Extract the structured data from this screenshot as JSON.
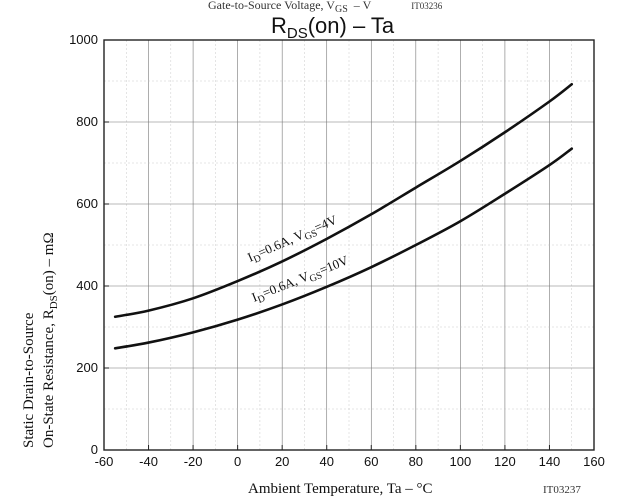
{
  "chart_data": {
    "type": "line",
    "top_caption": "Gate-to-Source Voltage, V",
    "top_caption_sub": "GS",
    "top_caption_tail": "–  V",
    "top_caption_code": "IT03236",
    "title_main": "R",
    "title_sub": "DS",
    "title_tail": "(on)  –  Ta",
    "xlabel": "Ambient Temperature, Ta  –  °C",
    "ylabel_line1": "Static Drain-to-Source",
    "ylabel_line2_main": "On-State Resistance, R",
    "ylabel_line2_sub": "DS",
    "ylabel_line2_tail": "(on)  –  mΩ",
    "figure_code": "IT03237",
    "xlim": [
      -60,
      160
    ],
    "ylim": [
      0,
      1000
    ],
    "x_ticks": [
      -60,
      -40,
      -20,
      0,
      20,
      40,
      60,
      80,
      100,
      120,
      140,
      160
    ],
    "y_ticks": [
      0,
      200,
      400,
      600,
      800,
      1000
    ],
    "grid": true,
    "series": [
      {
        "label_main": "I",
        "label_sub1": "D",
        "label_mid": "=0.6A, V",
        "label_sub2": "GS",
        "label_tail": "=4V",
        "x": [
          -55,
          -40,
          -20,
          0,
          20,
          40,
          60,
          80,
          100,
          120,
          140,
          150
        ],
        "y": [
          325,
          340,
          370,
          412,
          460,
          515,
          575,
          640,
          705,
          775,
          850,
          892
        ]
      },
      {
        "label_main": "I",
        "label_sub1": "D",
        "label_mid": "=0.6A, V",
        "label_sub2": "GS",
        "label_tail": "=10V",
        "x": [
          -55,
          -40,
          -20,
          0,
          20,
          40,
          60,
          80,
          100,
          120,
          140,
          150
        ],
        "y": [
          248,
          262,
          287,
          318,
          355,
          398,
          446,
          500,
          558,
          625,
          695,
          735
        ]
      }
    ]
  }
}
